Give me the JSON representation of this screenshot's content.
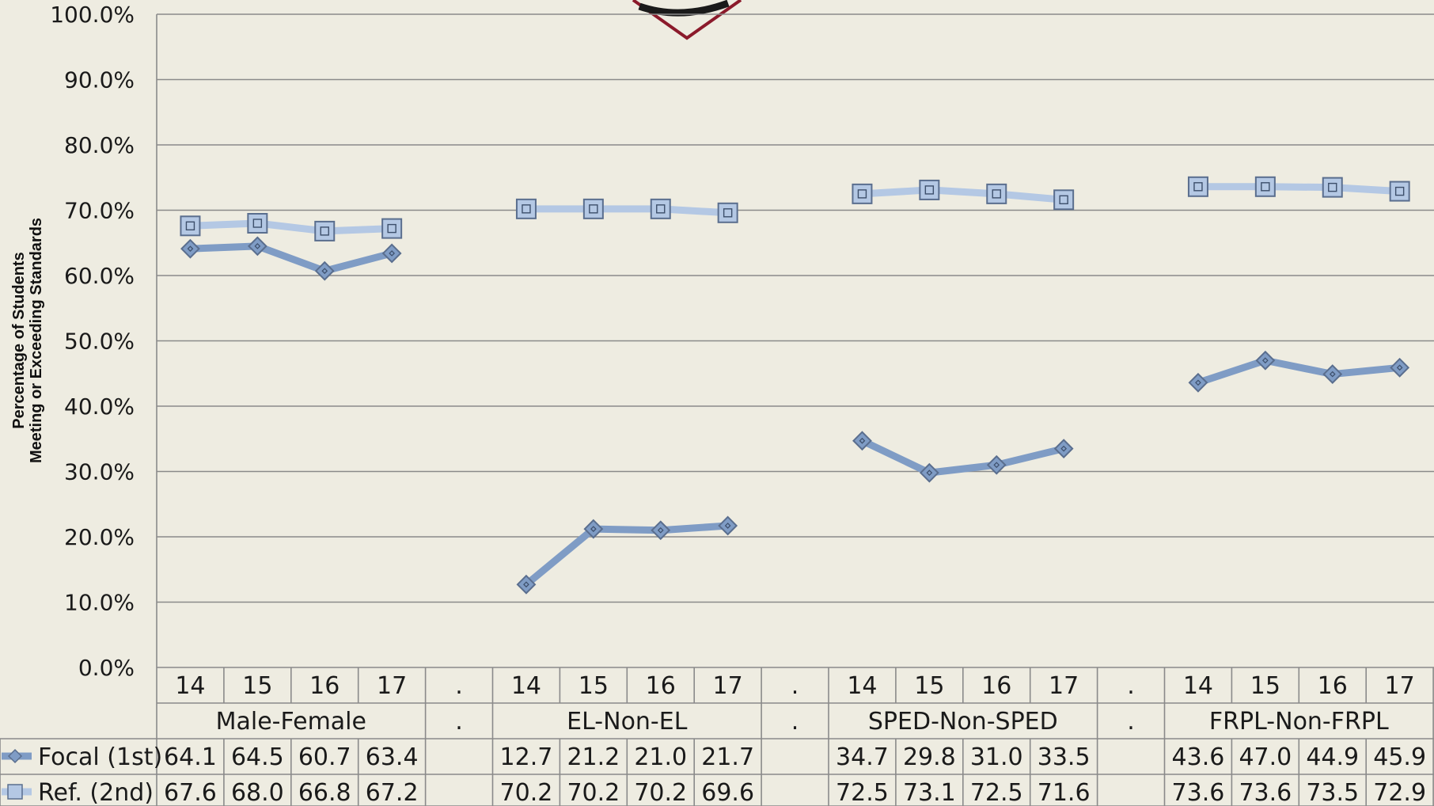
{
  "chart_data": {
    "type": "line",
    "ylabel_line1": "Percentage of Students",
    "ylabel_line2": "Meeting or Exceeding Standards",
    "ylim": [
      0,
      100
    ],
    "yticks": [
      0,
      10,
      20,
      30,
      40,
      50,
      60,
      70,
      80,
      90,
      100
    ],
    "ytick_labels": [
      "0.0%",
      "10.0%",
      "20.0%",
      "30.0%",
      "40.0%",
      "50.0%",
      "60.0%",
      "70.0%",
      "80.0%",
      "90.0%",
      "100.0%"
    ],
    "grid": true,
    "legend": "data-table",
    "colors": {
      "focal": "#7f9cc5",
      "ref": "#b4c8e4",
      "marker_stroke": "#5a6e8e",
      "logo": "#8b1a2b"
    },
    "groups": [
      {
        "name": "Male-Female",
        "years": [
          "14",
          "15",
          "16",
          "17"
        ]
      },
      {
        "name": "EL-Non-EL",
        "years": [
          "14",
          "15",
          "16",
          "17"
        ]
      },
      {
        "name": "SPED-Non-SPED",
        "years": [
          "14",
          "15",
          "16",
          "17"
        ]
      },
      {
        "name": "FRPL-Non-FRPL",
        "years": [
          "14",
          "15",
          "16",
          "17"
        ]
      }
    ],
    "separator_label": ".",
    "series": [
      {
        "name": "Focal (1st)",
        "marker": "diamond",
        "values": [
          [
            64.1,
            64.5,
            60.7,
            63.4
          ],
          [
            12.7,
            21.2,
            21.0,
            21.7
          ],
          [
            34.7,
            29.8,
            31.0,
            33.5
          ],
          [
            43.6,
            47.0,
            44.9,
            45.9
          ]
        ],
        "labels": [
          [
            "64.1",
            "64.5",
            "60.7",
            "63.4"
          ],
          [
            "12.7",
            "21.2",
            "21.0",
            "21.7"
          ],
          [
            "34.7",
            "29.8",
            "31.0",
            "33.5"
          ],
          [
            "43.6",
            "47.0",
            "44.9",
            "45.9"
          ]
        ]
      },
      {
        "name": "Ref. (2nd)",
        "marker": "square",
        "values": [
          [
            67.6,
            68.0,
            66.8,
            67.2
          ],
          [
            70.2,
            70.2,
            70.2,
            69.6
          ],
          [
            72.5,
            73.1,
            72.5,
            71.6
          ],
          [
            73.6,
            73.6,
            73.5,
            72.9
          ]
        ],
        "labels": [
          [
            "67.6",
            "68.0",
            "66.8",
            "67.2"
          ],
          [
            "70.2",
            "70.2",
            "70.2",
            "69.6"
          ],
          [
            "72.5",
            "73.1",
            "72.5",
            "71.6"
          ],
          [
            "73.6",
            "73.6",
            "73.5",
            "72.9"
          ]
        ]
      }
    ]
  }
}
